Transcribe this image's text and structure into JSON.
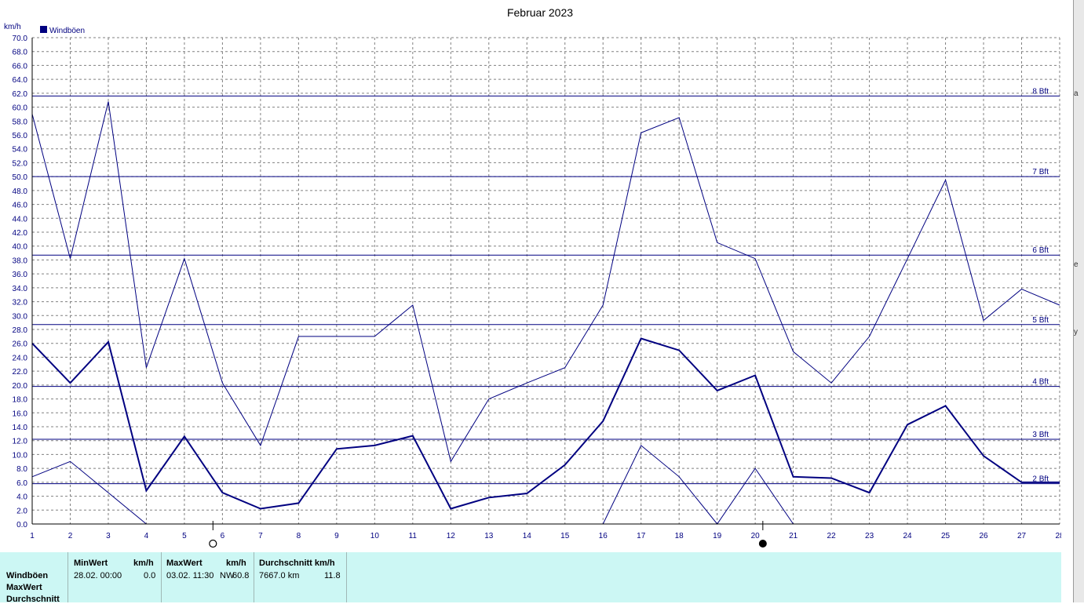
{
  "chart_data": {
    "type": "line",
    "title": "Februar 2023",
    "ylabel": "km/h",
    "xlabel": "",
    "ylim": [
      0,
      70
    ],
    "yticks": [
      "0.0",
      "2.0",
      "4.0",
      "6.0",
      "8.0",
      "10.0",
      "12.0",
      "14.0",
      "16.0",
      "18.0",
      "20.0",
      "22.0",
      "24.0",
      "26.0",
      "28.0",
      "30.0",
      "32.0",
      "34.0",
      "36.0",
      "38.0",
      "40.0",
      "42.0",
      "44.0",
      "46.0",
      "48.0",
      "50.0",
      "52.0",
      "54.0",
      "56.0",
      "58.0",
      "60.0",
      "62.0",
      "64.0",
      "66.0",
      "68.0",
      "70.0"
    ],
    "x": [
      1,
      2,
      3,
      4,
      5,
      6,
      7,
      8,
      9,
      10,
      11,
      12,
      13,
      14,
      15,
      16,
      17,
      18,
      19,
      20,
      21,
      22,
      23,
      24,
      25,
      26,
      27,
      28
    ],
    "legend": [
      "Windböen"
    ],
    "grid": true,
    "series": [
      {
        "name": "Windböen",
        "role": "mittel",
        "values": [
          26.0,
          20.3,
          26.2,
          4.8,
          12.6,
          4.5,
          2.2,
          3.0,
          10.8,
          11.3,
          12.7,
          2.2,
          3.8,
          4.4,
          8.5,
          14.8,
          26.7,
          25.0,
          19.2,
          21.4,
          6.8,
          6.6,
          4.5,
          14.3,
          17.0,
          9.8,
          6.0,
          6.0
        ]
      },
      {
        "name": "MaxWert",
        "role": "max",
        "values": [
          59.0,
          38.2,
          60.8,
          22.5,
          38.2,
          20.3,
          11.3,
          27.0,
          27.0,
          27.0,
          31.5,
          9.0,
          18.0,
          20.3,
          22.5,
          31.5,
          56.3,
          58.5,
          40.5,
          38.2,
          24.8,
          20.3,
          27.0,
          38.2,
          49.5,
          29.3,
          33.8,
          31.5
        ]
      },
      {
        "name": "MinWert",
        "role": "min",
        "values": [
          6.8,
          9.0,
          4.5,
          0,
          null,
          null,
          null,
          null,
          null,
          null,
          null,
          null,
          null,
          null,
          null,
          0,
          11.3,
          6.8,
          0,
          8.0,
          0,
          null,
          null,
          null,
          null,
          null,
          null,
          null
        ]
      }
    ],
    "beaufort": [
      {
        "label": "2 Bft",
        "value": 5.8
      },
      {
        "label": "3 Bft",
        "value": 12.2
      },
      {
        "label": "4 Bft",
        "value": 19.8
      },
      {
        "label": "5 Bft",
        "value": 28.7
      },
      {
        "label": "6 Bft",
        "value": 38.7
      },
      {
        "label": "7 Bft",
        "value": 50.0
      },
      {
        "label": "8 Bft",
        "value": 61.6
      }
    ],
    "moon_markers": [
      {
        "day": 5.75,
        "phase": "full"
      },
      {
        "day": 20.2,
        "phase": "new"
      }
    ],
    "colors": {
      "series": "#000080",
      "bft": "#000080",
      "grid": "#808080",
      "text": "#000080"
    }
  },
  "stats": {
    "row_labels": [
      "Windböen",
      "MaxWert",
      "Durchschnitt"
    ],
    "min": {
      "header": "MinWert",
      "unit": "km/h",
      "when": "28.02.  00:00",
      "value": "0.0"
    },
    "max": {
      "header": "MaxWert",
      "unit": "km/h",
      "when": "03.02.  11:30",
      "dir": "NW",
      "value": "60.8"
    },
    "avg": {
      "header": "Durchschnitt km/h",
      "distance": "7667.0 km",
      "value": "11.8"
    }
  },
  "side_glyphs": [
    "a",
    "e",
    "y"
  ]
}
